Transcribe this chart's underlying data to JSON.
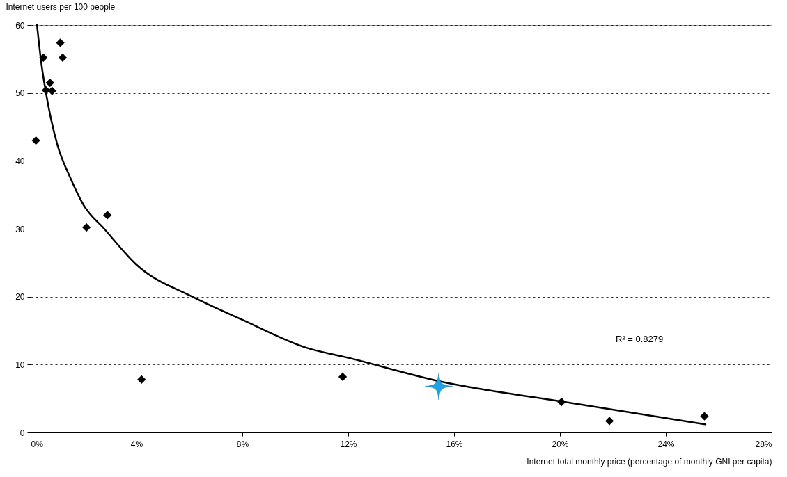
{
  "chart_data": {
    "type": "scatter",
    "xlabel": "Internet total monthly price (percentage of monthly GNI per capita)",
    "ylabel": "Internet users per 100 people",
    "xlim": [
      0,
      28
    ],
    "xticks": [
      {
        "value": 0,
        "label": "0%"
      },
      {
        "value": 4,
        "label": "4%"
      },
      {
        "value": 8,
        "label": "8%"
      },
      {
        "value": 12,
        "label": "12%"
      },
      {
        "value": 16,
        "label": "16%"
      },
      {
        "value": 20,
        "label": "20%"
      },
      {
        "value": 24,
        "label": "24%"
      },
      {
        "value": 28,
        "label": "28%"
      }
    ],
    "ylim": [
      0,
      60
    ],
    "yticks": [
      0,
      10,
      20,
      30,
      40,
      50,
      60
    ],
    "grid": "y",
    "series": [
      {
        "type": "line",
        "color": "#000000",
        "marker": "none",
        "line_style": "solid",
        "x": [
          0.24,
          0.4,
          0.58,
          1.0,
          1.5,
          2.0,
          2.78,
          4.0,
          6.11,
          8.0,
          10.4,
          12.0,
          15.5,
          20.0,
          25.5
        ],
        "values": [
          60,
          54.5,
          50,
          42.5,
          37.5,
          33.5,
          30,
          24.7,
          20,
          16.6,
          12.5,
          11,
          7.5,
          4.6,
          1.2
        ]
      },
      {
        "color": "#000000",
        "marker": "diamond",
        "x": [
          1.12,
          0.48,
          1.21,
          0.73,
          0.58,
          0.81,
          0.2,
          2.11,
          2.9,
          4.19,
          11.79,
          20.06,
          21.87,
          25.46
        ],
        "values": [
          57.4,
          55.2,
          55.2,
          51.5,
          50.4,
          50.3,
          43.0,
          30.2,
          32.0,
          7.8,
          8.2,
          4.5,
          1.7,
          2.4
        ]
      },
      {
        "color": "#1aa6e6",
        "marker": "star",
        "x": [
          15.42
        ],
        "values": [
          6.8
        ]
      }
    ],
    "annotations": [
      "R² = 0.8279"
    ]
  }
}
